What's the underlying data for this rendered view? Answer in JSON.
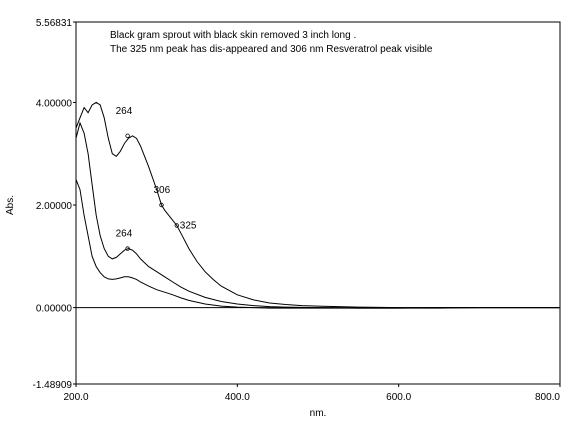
{
  "chart_data": {
    "type": "line",
    "title": "",
    "notes": [
      "Black gram  sprout  with black skin removed 3 inch long .",
      "The 325 nm peak has dis-appeared and 306 nm Resveratrol peak visible"
    ],
    "xlabel": "nm.",
    "ylabel": "Abs.",
    "xlim": [
      200.0,
      800.0
    ],
    "ylim": [
      -1.48909,
      5.56831
    ],
    "x_ticks": [
      "200.0",
      "400.0",
      "600.0",
      "800.0"
    ],
    "y_ticks": [
      {
        "value": 5.56831,
        "label": "5.56831"
      },
      {
        "value": 4.0,
        "label": "4.00000"
      },
      {
        "value": 2.0,
        "label": "2.00000"
      },
      {
        "value": 0.0,
        "label": "0.00000"
      },
      {
        "value": -1.48909,
        "label": "-1.48909"
      }
    ],
    "series": [
      {
        "x": [
          200,
          205,
          210,
          215,
          220,
          225,
          230,
          235,
          240,
          245,
          250,
          255,
          260,
          265,
          270,
          275,
          280,
          290,
          300,
          306,
          310,
          320,
          325,
          330,
          340,
          350,
          360,
          370,
          380,
          400,
          420,
          440,
          460,
          480,
          500,
          550,
          600,
          650,
          700,
          750,
          800
        ],
        "y": [
          3.5,
          3.7,
          3.9,
          3.8,
          3.95,
          4.0,
          3.95,
          3.7,
          3.3,
          3.0,
          2.95,
          3.05,
          3.2,
          3.3,
          3.35,
          3.3,
          3.15,
          2.75,
          2.3,
          2.0,
          1.9,
          1.7,
          1.6,
          1.45,
          1.15,
          0.9,
          0.7,
          0.55,
          0.42,
          0.25,
          0.15,
          0.09,
          0.06,
          0.04,
          0.03,
          0.01,
          0.0,
          0.0,
          0.0,
          0.0,
          0.0
        ]
      },
      {
        "x": [
          200,
          205,
          210,
          215,
          220,
          225,
          230,
          235,
          240,
          245,
          250,
          255,
          260,
          265,
          270,
          275,
          280,
          290,
          300,
          310,
          320,
          330,
          340,
          360,
          380,
          400,
          420,
          440,
          460,
          500,
          550,
          600,
          650,
          700,
          750,
          800
        ],
        "y": [
          3.3,
          3.6,
          3.4,
          3.0,
          2.4,
          1.8,
          1.4,
          1.15,
          1.0,
          0.95,
          0.98,
          1.05,
          1.12,
          1.15,
          1.12,
          1.05,
          0.95,
          0.8,
          0.7,
          0.6,
          0.5,
          0.4,
          0.32,
          0.2,
          0.12,
          0.07,
          0.04,
          0.02,
          0.01,
          0.0,
          -0.01,
          -0.01,
          -0.01,
          0.0,
          0.0,
          0.0
        ]
      },
      {
        "x": [
          200,
          205,
          210,
          215,
          220,
          225,
          230,
          235,
          240,
          245,
          250,
          255,
          260,
          265,
          270,
          275,
          280,
          290,
          300,
          310,
          320,
          330,
          340,
          360,
          380,
          400,
          420,
          440,
          460,
          500,
          550,
          600,
          650,
          700,
          750,
          800
        ],
        "y": [
          2.5,
          2.3,
          1.8,
          1.4,
          1.0,
          0.8,
          0.68,
          0.6,
          0.56,
          0.55,
          0.56,
          0.58,
          0.6,
          0.6,
          0.58,
          0.55,
          0.5,
          0.42,
          0.35,
          0.3,
          0.25,
          0.19,
          0.14,
          0.07,
          0.03,
          0.01,
          0.0,
          -0.01,
          -0.01,
          -0.01,
          -0.01,
          -0.01,
          0.0,
          0.0,
          0.0,
          0.0
        ]
      }
    ],
    "annotations": [
      {
        "text": "264",
        "x": 264,
        "y": 3.35
      },
      {
        "text": "306",
        "x": 306,
        "y": 2.0
      },
      {
        "text": "325",
        "x": 325,
        "y": 1.6
      },
      {
        "text": "264",
        "x": 264,
        "y": 1.15
      }
    ],
    "grid": false,
    "legend": "none"
  }
}
